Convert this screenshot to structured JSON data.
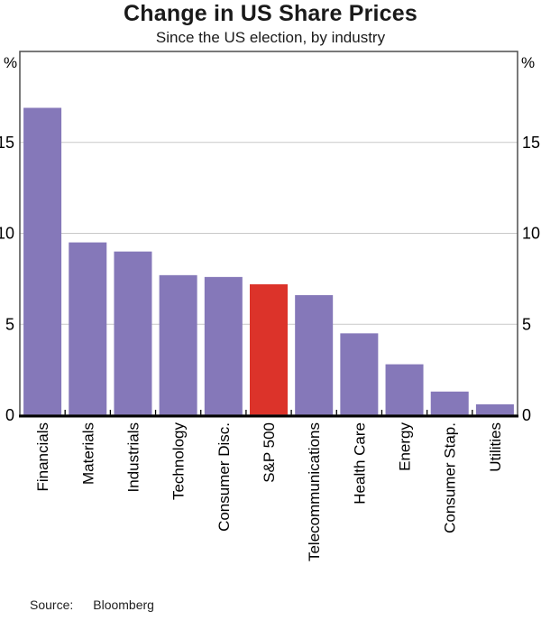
{
  "chart_data": {
    "type": "bar",
    "title": "Change in US Share Prices",
    "subtitle": "Since the US election, by industry",
    "unit_label": "%",
    "categories": [
      "Financials",
      "Materials",
      "Industrials",
      "Technology",
      "Consumer Disc.",
      "S&P 500",
      "Telecommunications",
      "Health Care",
      "Energy",
      "Consumer Stap.",
      "Utilities"
    ],
    "values": [
      16.9,
      9.5,
      9.0,
      7.7,
      7.6,
      7.2,
      6.6,
      4.5,
      2.8,
      1.3,
      0.6
    ],
    "highlight_category": "S&P 500",
    "ylim": [
      0,
      20
    ],
    "yticks": [
      0,
      5,
      10,
      15
    ],
    "grid": true,
    "ticks_both_sides": true,
    "xlabel": "",
    "ylabel": "%",
    "colors": {
      "bar": "#8578B9",
      "highlight": "#DC332A",
      "gridline": "#c9c9c9",
      "frame": "#4d4d4d",
      "axis": "#000000",
      "text": "#000000"
    }
  },
  "source": {
    "label": "Source:",
    "value": "Bloomberg"
  }
}
